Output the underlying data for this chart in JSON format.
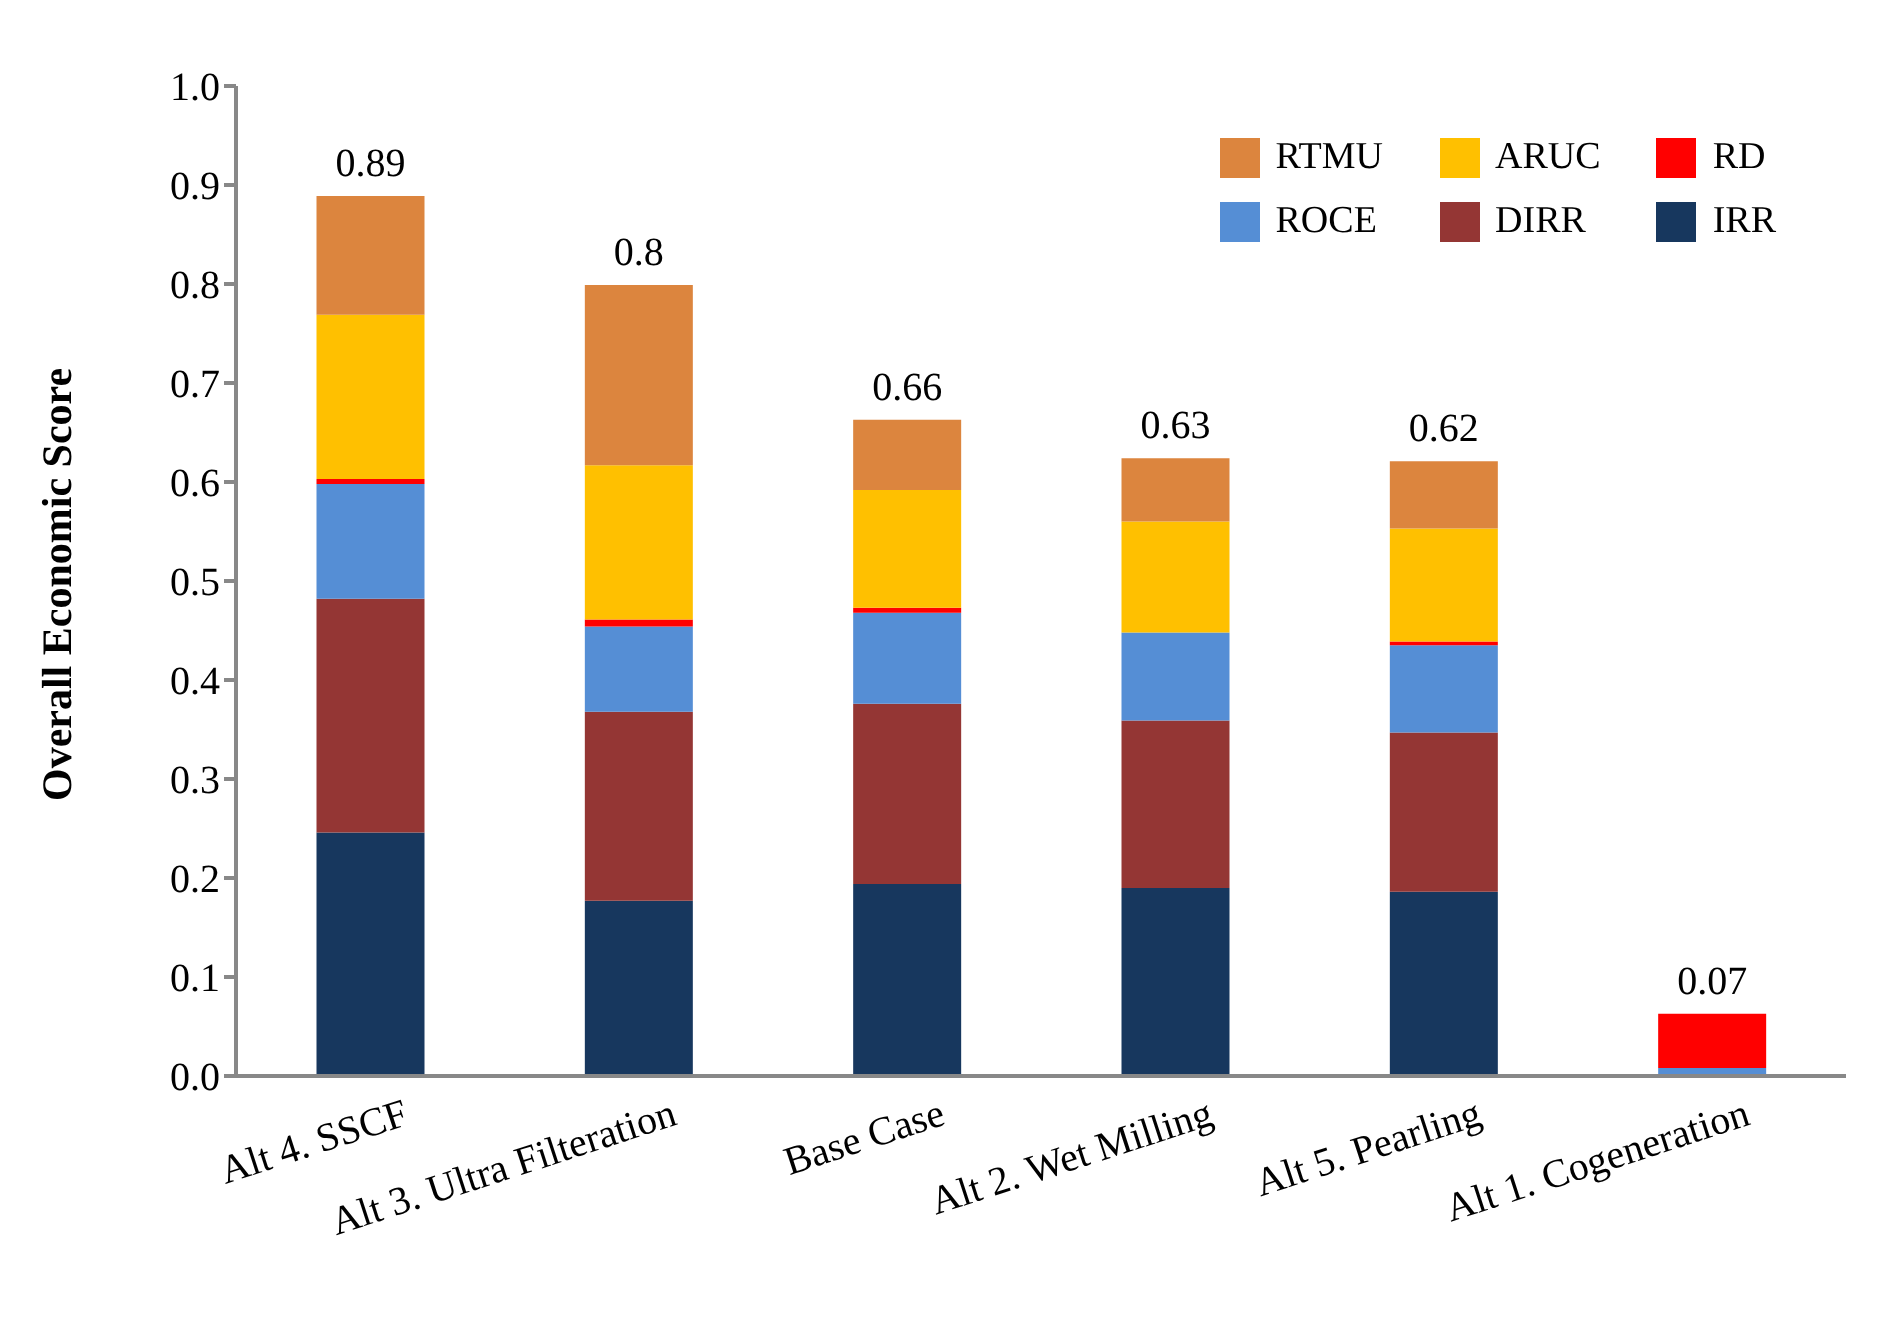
{
  "chart_data": {
    "type": "bar",
    "stacked": true,
    "ylabel": "Overall Economic Score",
    "categories": [
      "Alt 4. SSCF",
      "Alt 3. Ultra Filteration",
      "Base Case",
      "Alt 2. Wet Milling",
      "Alt 5. Pearling",
      "Alt 1. Cogeneration"
    ],
    "series": [
      {
        "name": "IRR",
        "color": "#17375e",
        "values": [
          0.246,
          0.177,
          0.194,
          0.19,
          0.186,
          0
        ]
      },
      {
        "name": "DIRR",
        "color": "#943634",
        "values": [
          0.236,
          0.191,
          0.182,
          0.169,
          0.161,
          0
        ]
      },
      {
        "name": "ROCE",
        "color": "#558ed5",
        "values": [
          0.116,
          0.086,
          0.092,
          0.089,
          0.088,
          0.008
        ]
      },
      {
        "name": "RD",
        "color": "#ff0000",
        "values": [
          0.005,
          0.007,
          0.005,
          0,
          0.004,
          0.055
        ]
      },
      {
        "name": "ARUC",
        "color": "#ffc000",
        "values": [
          0.166,
          0.156,
          0.119,
          0.112,
          0.114,
          0
        ]
      },
      {
        "name": "RTMU",
        "color": "#dc853e",
        "values": [
          0.12,
          0.182,
          0.071,
          0.064,
          0.068,
          0
        ]
      }
    ],
    "totals": [
      "0.89",
      "0.8",
      "0.66",
      "0.63",
      "0.62",
      "0.07"
    ],
    "ylim": [
      0,
      1
    ],
    "yticks": [
      {
        "value": 0,
        "label": "0.0"
      },
      0.1,
      0.2,
      0.3,
      0.4,
      0.5,
      0.6,
      0.7,
      0.8,
      0.9,
      {
        "value": 1,
        "label": "1.0"
      }
    ],
    "grid": false,
    "legend": "top right"
  }
}
